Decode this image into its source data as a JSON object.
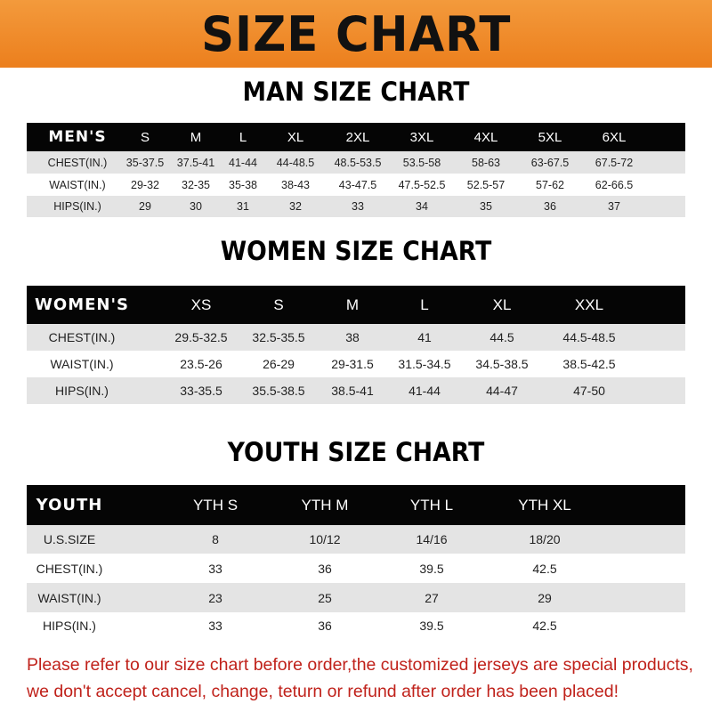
{
  "banner": {
    "title": "SIZE CHART",
    "color": "#ee8525"
  },
  "men": {
    "title": "MAN SIZE CHART",
    "header": [
      "MEN'S",
      "S",
      "M",
      "L",
      "XL",
      "2XL",
      "3XL",
      "4XL",
      "5XL",
      "6XL"
    ],
    "rows": [
      [
        "CHEST(IN.)",
        "35-37.5",
        "37.5-41",
        "41-44",
        "44-48.5",
        "48.5-53.5",
        "53.5-58",
        "58-63",
        "63-67.5",
        "67.5-72"
      ],
      [
        "WAIST(IN.)",
        "29-32",
        "32-35",
        "35-38",
        "38-43",
        "43-47.5",
        "47.5-52.5",
        "52.5-57",
        "57-62",
        "62-66.5"
      ],
      [
        "HIPS(IN.)",
        "29",
        "30",
        "31",
        "32",
        "33",
        "34",
        "35",
        "36",
        "37"
      ]
    ]
  },
  "women": {
    "title": "WOMEN SIZE CHART",
    "header": [
      "WOMEN'S",
      "XS",
      "S",
      "M",
      "L",
      "XL",
      "XXL"
    ],
    "rows": [
      [
        "CHEST(IN.)",
        "29.5-32.5",
        "32.5-35.5",
        "38",
        "41",
        "44.5",
        "44.5-48.5"
      ],
      [
        "WAIST(IN.)",
        "23.5-26",
        "26-29",
        "29-31.5",
        "31.5-34.5",
        "34.5-38.5",
        "38.5-42.5"
      ],
      [
        "HIPS(IN.)",
        "33-35.5",
        "35.5-38.5",
        "38.5-41",
        "41-44",
        "44-47",
        "47-50"
      ]
    ]
  },
  "youth": {
    "title": "YOUTH SIZE CHART",
    "header": [
      "YOUTH",
      "YTH S",
      "YTH M",
      "YTH L",
      "YTH XL"
    ],
    "rows": [
      [
        "U.S.SIZE",
        "8",
        "10/12",
        "14/16",
        "18/20"
      ],
      [
        "CHEST(IN.)",
        "33",
        "36",
        "39.5",
        "42.5"
      ],
      [
        "WAIST(IN.)",
        "23",
        "25",
        "27",
        "29"
      ],
      [
        "HIPS(IN.)",
        "33",
        "36",
        "39.5",
        "42.5"
      ]
    ]
  },
  "notice": {
    "line1": "Please refer to our size chart before order,the customized jerseys are special products,",
    "line2": "we don't accept cancel, change, teturn or refund after order has been placed!",
    "color": "#c0221b"
  }
}
